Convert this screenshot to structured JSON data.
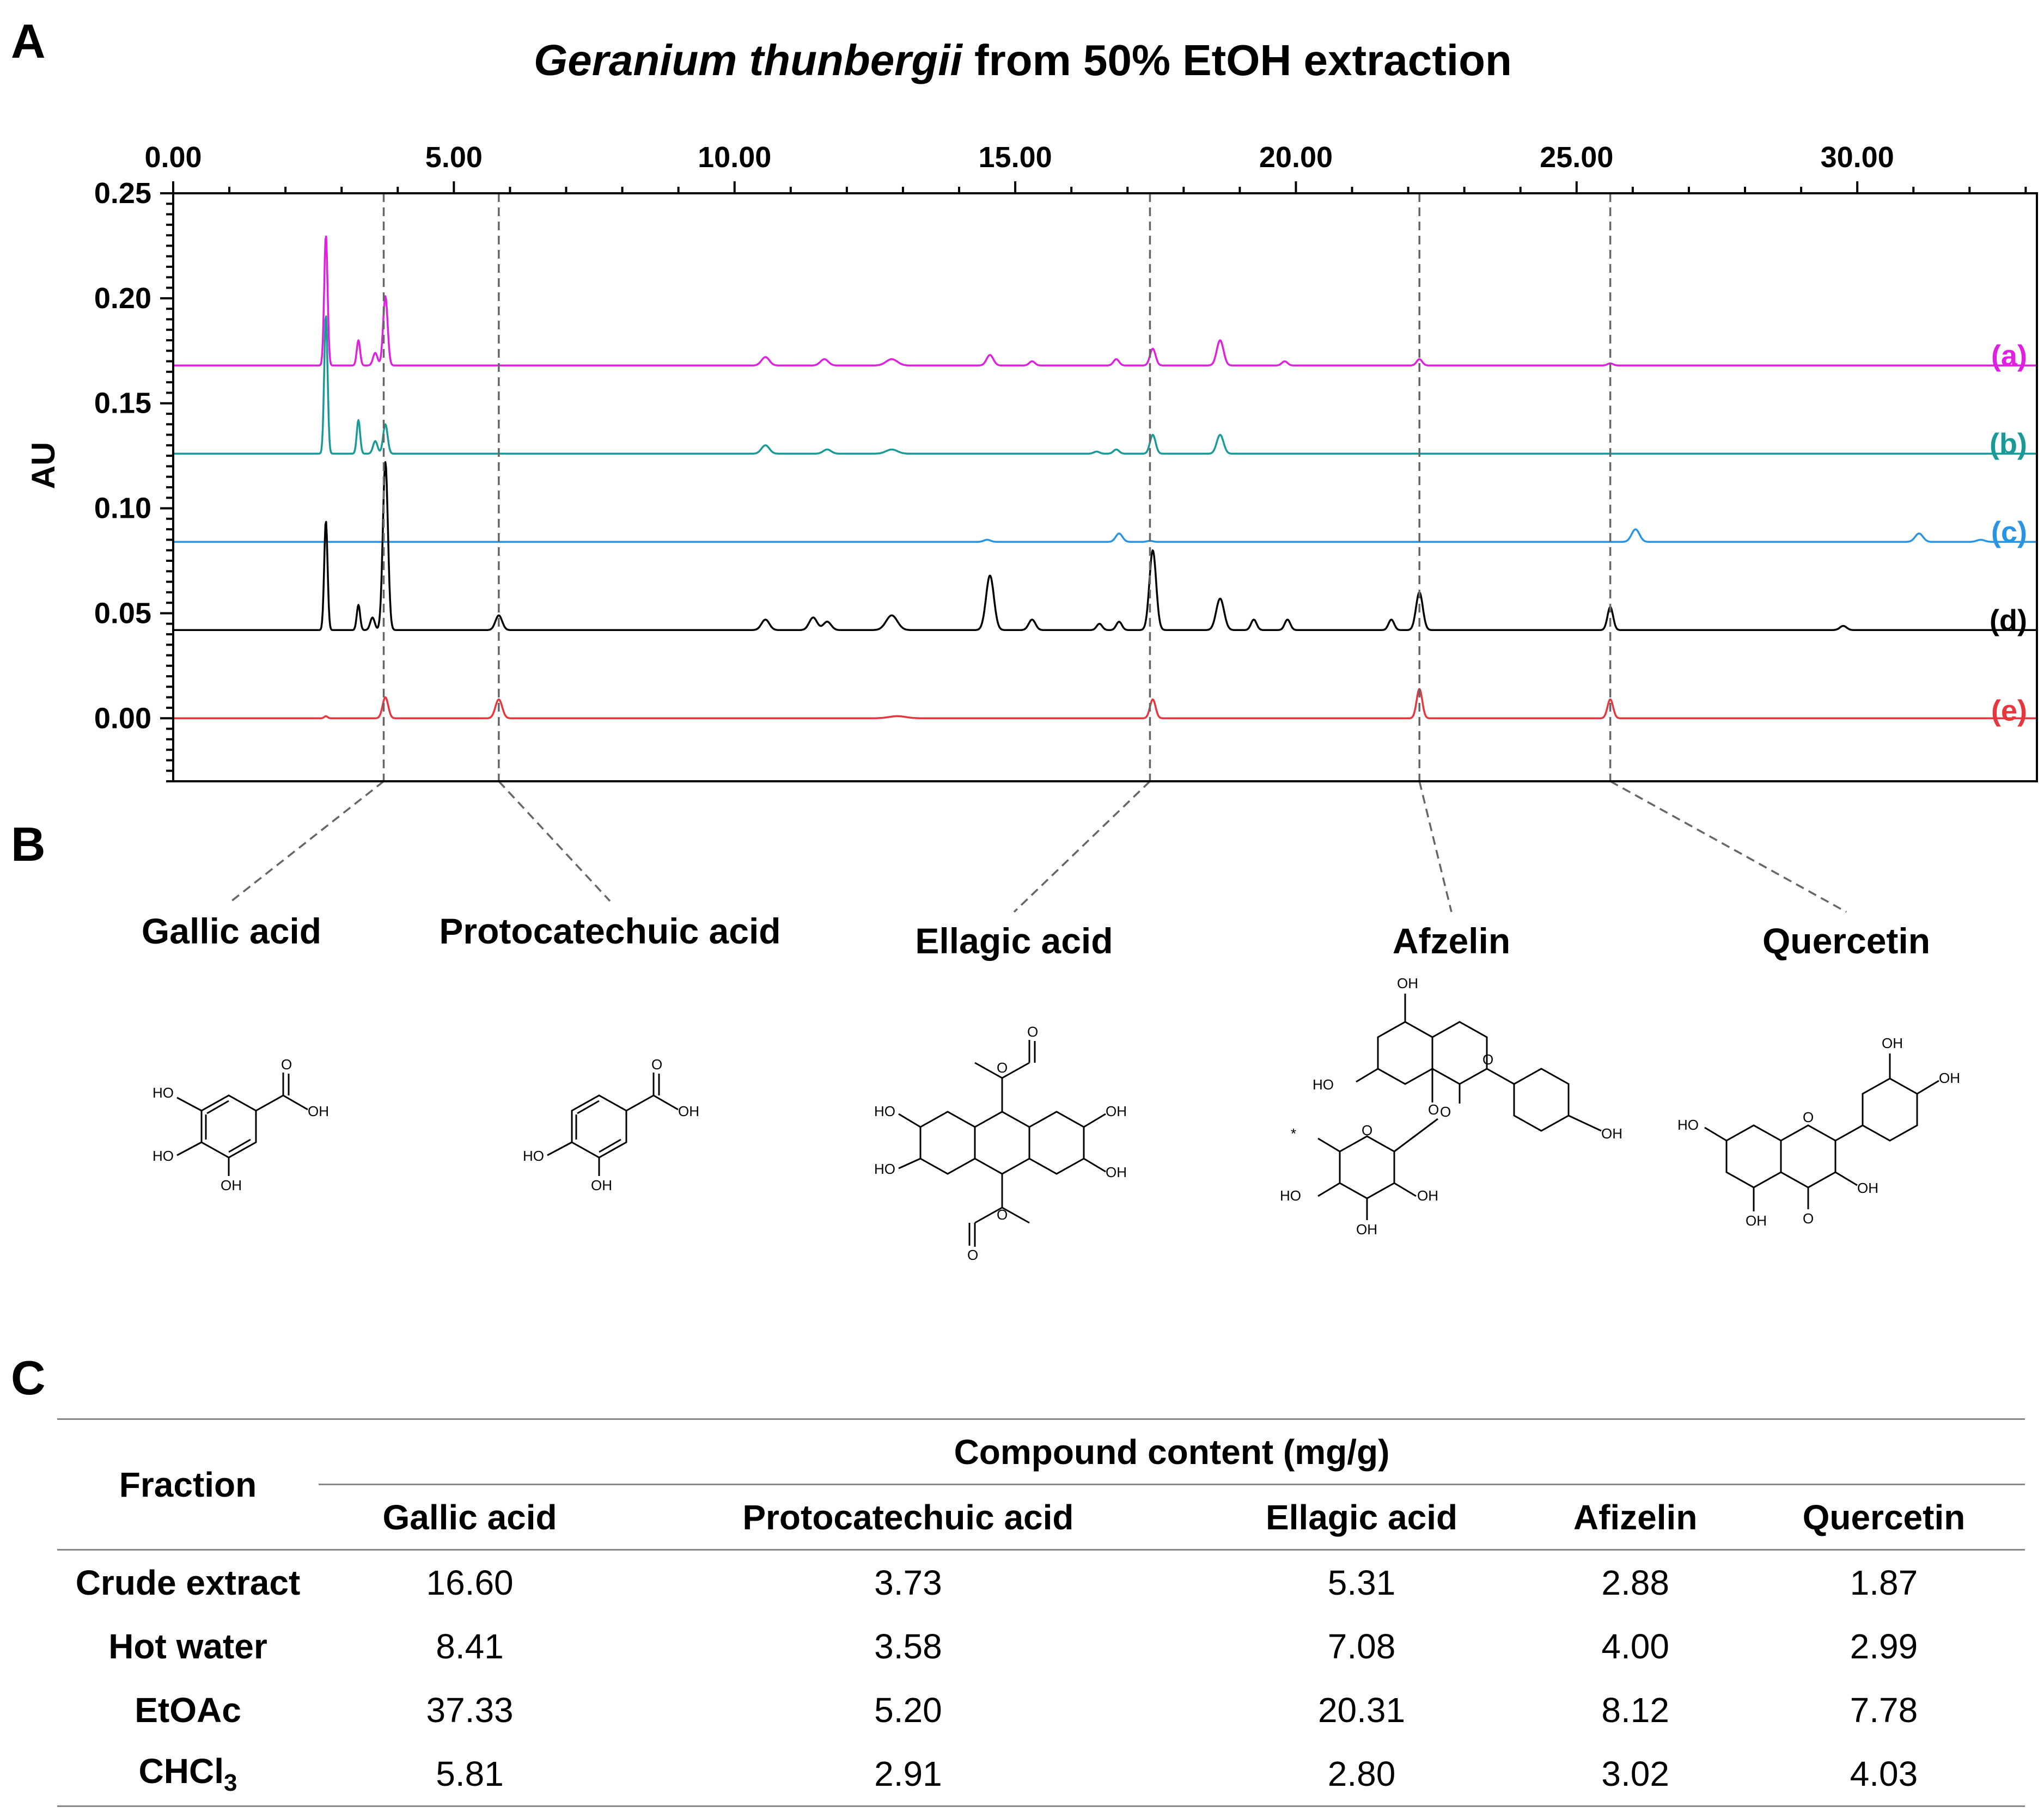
{
  "panels": {
    "a": "A",
    "b": "B",
    "c": "C"
  },
  "chart_data": {
    "type": "line",
    "title_italic": "Geranium thunbergii",
    "title_rest": " from 50% EtOH extraction",
    "xlabel": "",
    "ylabel": "AU",
    "xlim": [
      0,
      33.2
    ],
    "ylim": [
      -0.03,
      0.25
    ],
    "x_ticks": [
      "0.00",
      "5.00",
      "10.00",
      "15.00",
      "20.00",
      "25.00",
      "30.00"
    ],
    "x_tick_values": [
      0,
      5,
      10,
      15,
      20,
      25,
      30
    ],
    "y_ticks": [
      "0.00",
      "0.05",
      "0.10",
      "0.15",
      "0.20",
      "0.25"
    ],
    "y_tick_values": [
      0,
      0.05,
      0.1,
      0.15,
      0.2,
      0.25
    ],
    "dashed_lines_x": [
      3.75,
      5.8,
      17.4,
      22.2,
      25.6
    ],
    "series": [
      {
        "name": "(a)",
        "color": "#e020e0",
        "baseline": 0.168,
        "peaks": [
          [
            2.72,
            0.062,
            0.03
          ],
          [
            3.3,
            0.012,
            0.03
          ],
          [
            3.6,
            0.006,
            0.04
          ],
          [
            3.78,
            0.033,
            0.04
          ],
          [
            10.55,
            0.004,
            0.07
          ],
          [
            11.6,
            0.003,
            0.07
          ],
          [
            12.8,
            0.003,
            0.1
          ],
          [
            14.55,
            0.005,
            0.06
          ],
          [
            15.3,
            0.002,
            0.05
          ],
          [
            16.8,
            0.003,
            0.05
          ],
          [
            17.45,
            0.008,
            0.05
          ],
          [
            18.65,
            0.012,
            0.06
          ],
          [
            19.8,
            0.002,
            0.05
          ],
          [
            22.2,
            0.003,
            0.05
          ],
          [
            25.6,
            0.001,
            0.05
          ]
        ]
      },
      {
        "name": "(b)",
        "color": "#1a9a96",
        "baseline": 0.126,
        "peaks": [
          [
            2.72,
            0.066,
            0.03
          ],
          [
            3.3,
            0.016,
            0.03
          ],
          [
            3.6,
            0.006,
            0.04
          ],
          [
            3.78,
            0.014,
            0.04
          ],
          [
            10.55,
            0.004,
            0.07
          ],
          [
            11.65,
            0.002,
            0.07
          ],
          [
            12.8,
            0.002,
            0.1
          ],
          [
            16.45,
            0.001,
            0.05
          ],
          [
            16.8,
            0.002,
            0.05
          ],
          [
            17.45,
            0.009,
            0.05
          ],
          [
            18.65,
            0.009,
            0.06
          ]
        ]
      },
      {
        "name": "(c)",
        "color": "#2a94e4",
        "baseline": 0.084,
        "peaks": [
          [
            14.5,
            0.001,
            0.06
          ],
          [
            16.85,
            0.004,
            0.06
          ],
          [
            17.4,
            0.0005,
            0.05
          ],
          [
            26.05,
            0.006,
            0.07
          ],
          [
            31.1,
            0.004,
            0.07
          ],
          [
            32.2,
            0.001,
            0.07
          ]
        ]
      },
      {
        "name": "(d)",
        "color": "#000000",
        "baseline": 0.042,
        "peaks": [
          [
            2.72,
            0.052,
            0.03
          ],
          [
            3.3,
            0.012,
            0.03
          ],
          [
            3.55,
            0.006,
            0.04
          ],
          [
            3.78,
            0.08,
            0.045
          ],
          [
            5.8,
            0.007,
            0.06
          ],
          [
            10.55,
            0.005,
            0.07
          ],
          [
            11.4,
            0.006,
            0.07
          ],
          [
            11.65,
            0.004,
            0.07
          ],
          [
            12.8,
            0.007,
            0.1
          ],
          [
            14.55,
            0.026,
            0.07
          ],
          [
            15.3,
            0.005,
            0.06
          ],
          [
            16.5,
            0.003,
            0.05
          ],
          [
            16.85,
            0.004,
            0.05
          ],
          [
            17.45,
            0.038,
            0.06
          ],
          [
            18.65,
            0.015,
            0.07
          ],
          [
            19.25,
            0.005,
            0.05
          ],
          [
            19.85,
            0.005,
            0.05
          ],
          [
            21.7,
            0.005,
            0.05
          ],
          [
            22.2,
            0.018,
            0.06
          ],
          [
            25.6,
            0.011,
            0.05
          ],
          [
            29.75,
            0.002,
            0.06
          ]
        ]
      },
      {
        "name": "(e)",
        "color": "#e8373c",
        "baseline": 0.0,
        "peaks": [
          [
            2.72,
            0.001,
            0.03
          ],
          [
            3.78,
            0.01,
            0.05
          ],
          [
            5.8,
            0.009,
            0.06
          ],
          [
            12.9,
            0.001,
            0.15
          ],
          [
            17.45,
            0.009,
            0.05
          ],
          [
            22.2,
            0.014,
            0.05
          ],
          [
            25.6,
            0.009,
            0.05
          ]
        ]
      }
    ]
  },
  "compounds": [
    {
      "name": "Gallic acid"
    },
    {
      "name": "Protocatechuic acid"
    },
    {
      "name": "Ellagic acid"
    },
    {
      "name": "Afzelin"
    },
    {
      "name": "Quercetin"
    }
  ],
  "atoms": {
    "oh": "OH",
    "ho": "HO",
    "o": "O",
    "star": "*"
  },
  "table": {
    "fraction_header": "Fraction",
    "group_header": "Compound content (mg/g)",
    "columns": [
      "Gallic acid",
      "Protocatechuic acid",
      "Ellagic acid",
      "Afizelin",
      "Quercetin"
    ],
    "rows": [
      {
        "fraction": "Crude extract",
        "values": [
          "16.60",
          "3.73",
          "5.31",
          "2.88",
          "1.87"
        ]
      },
      {
        "fraction": "Hot water",
        "values": [
          "8.41",
          "3.58",
          "7.08",
          "4.00",
          "2.99"
        ]
      },
      {
        "fraction": "EtOAc",
        "values": [
          "37.33",
          "5.20",
          "20.31",
          "8.12",
          "7.78"
        ]
      }
    ],
    "chcl3": {
      "fraction_main": "CHCl",
      "fraction_sub": "3",
      "values": [
        "5.81",
        "2.91",
        "2.80",
        "3.02",
        "4.03"
      ]
    }
  }
}
